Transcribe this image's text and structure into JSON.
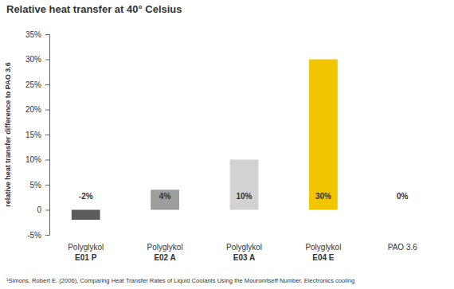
{
  "chart_data": {
    "type": "bar",
    "title": "Relative heat transfer at 40° Celsius",
    "y_label": "relative heat transfer difference to PAO 3.6",
    "categories": [
      "Polyglykol\nE01 P",
      "Polyglykol\nE02 A",
      "Polyglykol\nE03 A",
      "Polyglykol\nE04 E",
      "PAO 3.6"
    ],
    "values": [
      -2,
      4,
      10,
      30,
      0
    ],
    "value_labels": [
      "-2%",
      "4%",
      "10%",
      "30%",
      "0%"
    ],
    "colors": [
      "#5c5c5c",
      "#9d9d9d",
      "#d2d2d2",
      "#f2c500",
      "#bdbdbd"
    ],
    "ylim": [
      -5,
      35
    ],
    "yticks": [
      {
        "value": -5,
        "label": "-5%"
      },
      {
        "value": 0,
        "label": "0"
      },
      {
        "value": 5,
        "label": "5%"
      },
      {
        "value": 10,
        "label": "10%"
      },
      {
        "value": 15,
        "label": "15%"
      },
      {
        "value": 20,
        "label": "20%"
      },
      {
        "value": 25,
        "label": "25%"
      },
      {
        "value": 30,
        "label": "30%"
      },
      {
        "value": 35,
        "label": "35%"
      }
    ],
    "grid": false,
    "data_labels": true,
    "footnote": "¹Simons, Robert E. (2006), Comparing Heat Transfer Rates of Liquid Coolants Using the Mouromtseff Number, Electronics cooling"
  }
}
